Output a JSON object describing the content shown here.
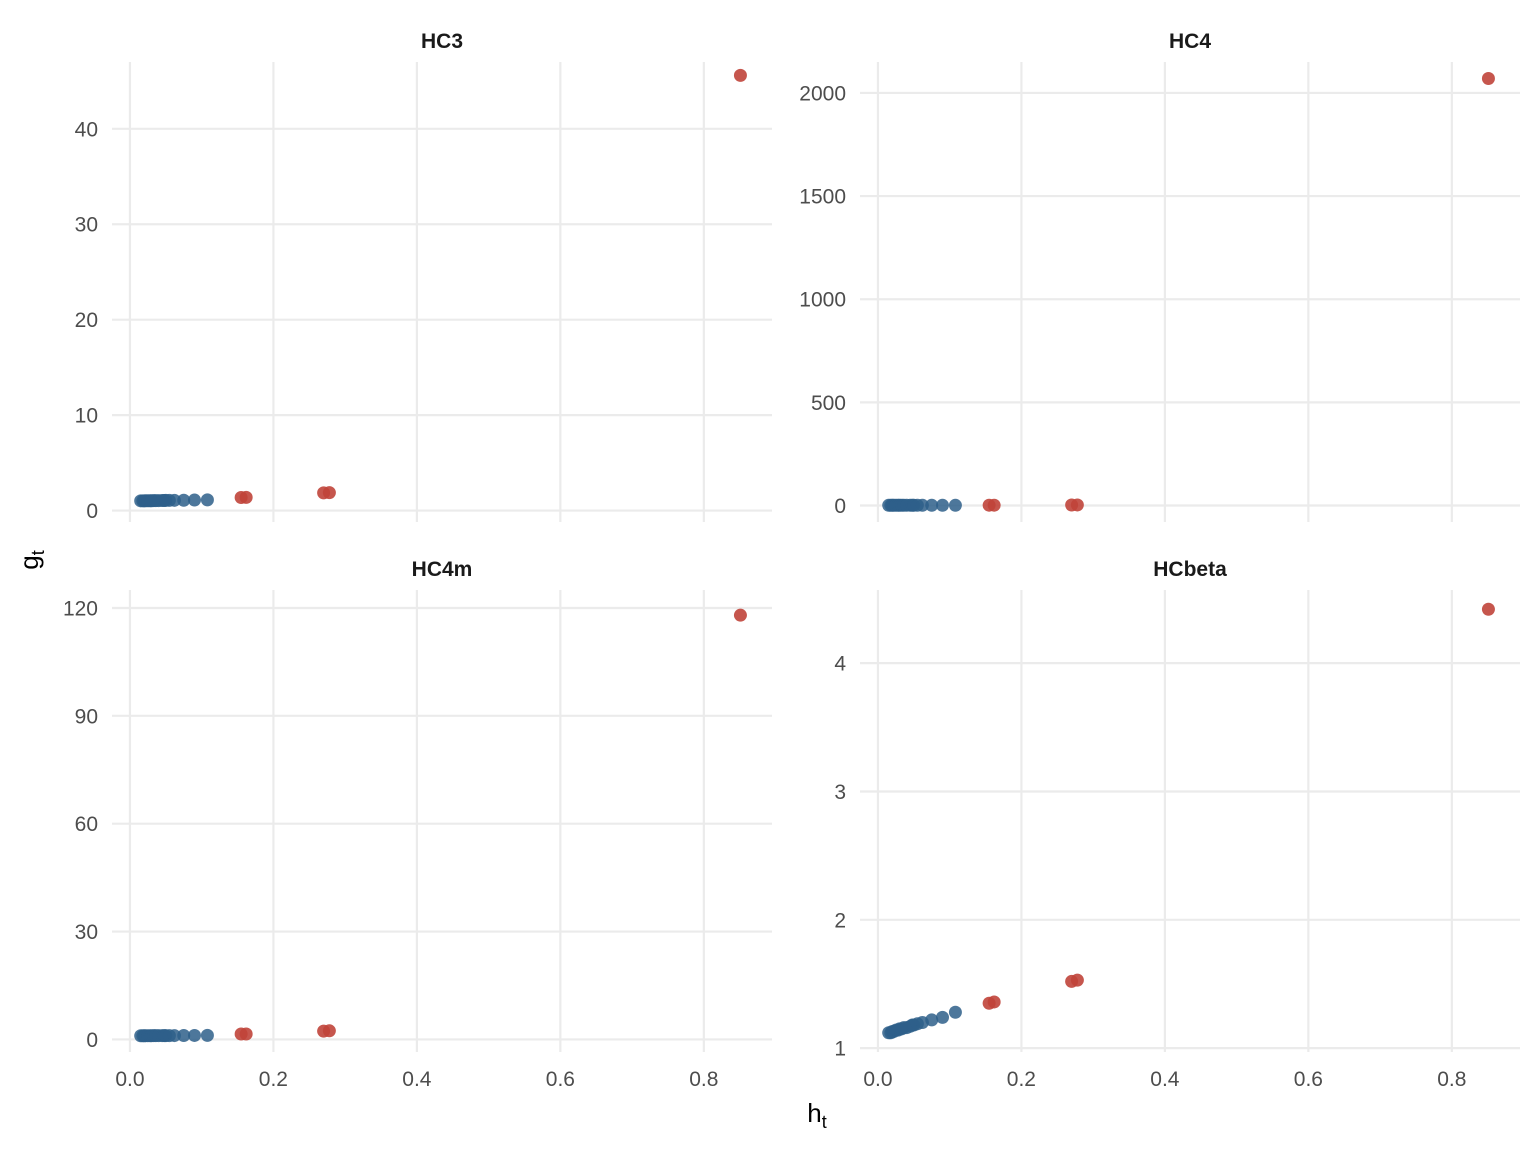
{
  "chart_data": {
    "type": "scatter",
    "xlabel": "h",
    "xlabel_sub": "t",
    "ylabel": "g",
    "ylabel_sub": "t",
    "colors": {
      "normal": "#2e5f8a",
      "high_leverage": "#c0443a"
    },
    "grid": true,
    "panels": [
      {
        "title": "HC3",
        "xlim": [
          -0.025,
          0.895
        ],
        "ylim": [
          -1.2,
          47.0
        ],
        "x_ticks": [
          0.0,
          0.2,
          0.4,
          0.6,
          0.8
        ],
        "x_tick_labels": [
          "0.0",
          "0.2",
          "0.4",
          "0.6",
          "0.8"
        ],
        "y_ticks": [
          0,
          10,
          20,
          30,
          40
        ],
        "y_tick_labels": [
          "0",
          "10",
          "20",
          "30",
          "40"
        ],
        "show_x_labels": false,
        "normal_points": [
          [
            0.015,
            1.02
          ],
          [
            0.018,
            1.02
          ],
          [
            0.02,
            1.02
          ],
          [
            0.022,
            1.03
          ],
          [
            0.025,
            1.03
          ],
          [
            0.028,
            1.03
          ],
          [
            0.03,
            1.03
          ],
          [
            0.033,
            1.04
          ],
          [
            0.036,
            1.04
          ],
          [
            0.04,
            1.04
          ],
          [
            0.045,
            1.05
          ],
          [
            0.048,
            1.05
          ],
          [
            0.05,
            1.06
          ],
          [
            0.055,
            1.06
          ],
          [
            0.062,
            1.07
          ],
          [
            0.075,
            1.08
          ],
          [
            0.09,
            1.1
          ],
          [
            0.108,
            1.12
          ]
        ],
        "high_points": [
          [
            0.155,
            1.37
          ],
          [
            0.162,
            1.38
          ],
          [
            0.27,
            1.85
          ],
          [
            0.278,
            1.88
          ],
          [
            0.851,
            45.6
          ]
        ]
      },
      {
        "title": "HC4",
        "xlim": [
          -0.025,
          0.895
        ],
        "ylim": [
          -80,
          2150
        ],
        "x_ticks": [
          0.0,
          0.2,
          0.4,
          0.6,
          0.8
        ],
        "x_tick_labels": [
          "0.0",
          "0.2",
          "0.4",
          "0.6",
          "0.8"
        ],
        "y_ticks": [
          0,
          500,
          1000,
          1500,
          2000
        ],
        "y_tick_labels": [
          "0",
          "500",
          "1000",
          "1500",
          "2000"
        ],
        "show_x_labels": false,
        "normal_points": [
          [
            0.015,
            1.0
          ],
          [
            0.018,
            1.0
          ],
          [
            0.02,
            1.0
          ],
          [
            0.022,
            1.0
          ],
          [
            0.025,
            1.0
          ],
          [
            0.028,
            1.0
          ],
          [
            0.03,
            1.0
          ],
          [
            0.033,
            1.0
          ],
          [
            0.036,
            1.0
          ],
          [
            0.04,
            1.0
          ],
          [
            0.045,
            1.0
          ],
          [
            0.048,
            1.0
          ],
          [
            0.05,
            1.0
          ],
          [
            0.055,
            1.0
          ],
          [
            0.062,
            1.0
          ],
          [
            0.075,
            1.0
          ],
          [
            0.09,
            1.0
          ],
          [
            0.108,
            1.0
          ]
        ],
        "high_points": [
          [
            0.155,
            1.5
          ],
          [
            0.162,
            1.5
          ],
          [
            0.27,
            2.5
          ],
          [
            0.278,
            2.6
          ],
          [
            0.851,
            2070
          ]
        ]
      },
      {
        "title": "HC4m",
        "xlim": [
          -0.025,
          0.895
        ],
        "ylim": [
          -3.5,
          125
        ],
        "x_ticks": [
          0.0,
          0.2,
          0.4,
          0.6,
          0.8
        ],
        "x_tick_labels": [
          "0.0",
          "0.2",
          "0.4",
          "0.6",
          "0.8"
        ],
        "y_ticks": [
          0,
          30,
          60,
          90,
          120
        ],
        "y_tick_labels": [
          "0",
          "30",
          "60",
          "90",
          "120"
        ],
        "show_x_labels": true,
        "normal_points": [
          [
            0.015,
            1.02
          ],
          [
            0.018,
            1.02
          ],
          [
            0.02,
            1.02
          ],
          [
            0.022,
            1.03
          ],
          [
            0.025,
            1.03
          ],
          [
            0.028,
            1.03
          ],
          [
            0.03,
            1.03
          ],
          [
            0.033,
            1.04
          ],
          [
            0.036,
            1.04
          ],
          [
            0.04,
            1.04
          ],
          [
            0.045,
            1.05
          ],
          [
            0.048,
            1.05
          ],
          [
            0.05,
            1.06
          ],
          [
            0.055,
            1.06
          ],
          [
            0.062,
            1.07
          ],
          [
            0.075,
            1.08
          ],
          [
            0.09,
            1.1
          ],
          [
            0.108,
            1.12
          ]
        ],
        "high_points": [
          [
            0.155,
            1.5
          ],
          [
            0.162,
            1.5
          ],
          [
            0.27,
            2.3
          ],
          [
            0.278,
            2.4
          ],
          [
            0.851,
            118
          ]
        ]
      },
      {
        "title": "HCbeta",
        "xlim": [
          -0.025,
          0.895
        ],
        "ylim": [
          0.97,
          4.57
        ],
        "x_ticks": [
          0.0,
          0.2,
          0.4,
          0.6,
          0.8
        ],
        "x_tick_labels": [
          "0.0",
          "0.2",
          "0.4",
          "0.6",
          "0.8"
        ],
        "y_ticks": [
          1,
          2,
          3,
          4
        ],
        "y_tick_labels": [
          "1",
          "2",
          "3",
          "4"
        ],
        "show_x_labels": true,
        "normal_points": [
          [
            0.015,
            1.12
          ],
          [
            0.018,
            1.12
          ],
          [
            0.02,
            1.13
          ],
          [
            0.022,
            1.13
          ],
          [
            0.025,
            1.14
          ],
          [
            0.028,
            1.14
          ],
          [
            0.03,
            1.15
          ],
          [
            0.033,
            1.15
          ],
          [
            0.036,
            1.16
          ],
          [
            0.04,
            1.16
          ],
          [
            0.045,
            1.17
          ],
          [
            0.048,
            1.18
          ],
          [
            0.05,
            1.18
          ],
          [
            0.055,
            1.19
          ],
          [
            0.062,
            1.2
          ],
          [
            0.075,
            1.22
          ],
          [
            0.09,
            1.24
          ],
          [
            0.108,
            1.28
          ]
        ],
        "high_points": [
          [
            0.155,
            1.35
          ],
          [
            0.162,
            1.36
          ],
          [
            0.27,
            1.52
          ],
          [
            0.278,
            1.53
          ],
          [
            0.851,
            4.42
          ]
        ]
      }
    ]
  }
}
